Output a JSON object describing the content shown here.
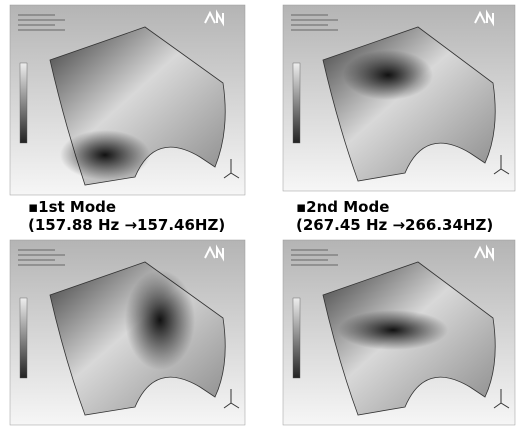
{
  "captions": [
    {
      "mode": "▪1st Mode",
      "freq": "(157.88 Hz →157.46HZ)"
    },
    {
      "mode": "▪2nd Mode",
      "freq": "(267.45 Hz →266.34HZ)"
    }
  ]
}
